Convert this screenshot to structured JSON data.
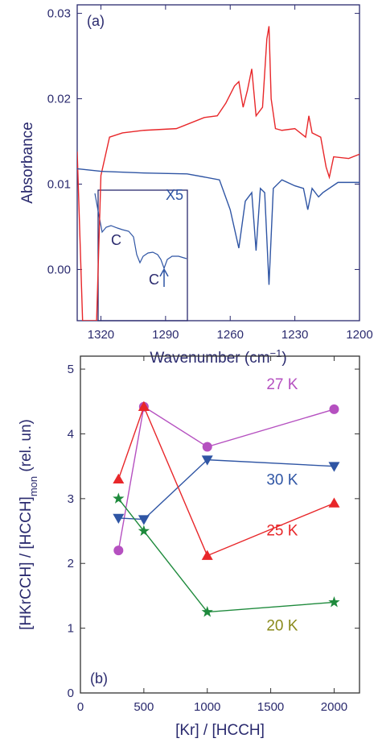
{
  "chart_data": [
    {
      "type": "line",
      "panel_label": "(a)",
      "y_label": "Absorbance",
      "x_label": [
        "Wavenumber (cm",
        "−1",
        ")"
      ],
      "xlim": [
        1331,
        1200
      ],
      "xticks": [
        1320,
        1290,
        1260,
        1230,
        1200
      ],
      "ylim": [
        -0.006,
        0.031
      ],
      "yticks": [
        {
          "value": 0,
          "label": "0.00"
        },
        0.01,
        0.02,
        0.03
      ],
      "annotations": [
        "C",
        "C",
        "X5"
      ],
      "series": [
        {
          "color": "#e8272a",
          "x": [
            1331,
            1328.5,
            1322,
            1320,
            1316,
            1310,
            1300,
            1285,
            1272,
            1266,
            1262,
            1258,
            1256,
            1254,
            1252,
            1250,
            1248,
            1245,
            1243,
            1242,
            1241,
            1239,
            1236,
            1230,
            1225,
            1223.5,
            1222,
            1218,
            1215.5,
            1214,
            1212,
            1205,
            1200
          ],
          "values": [
            0.0138,
            -0.006,
            -0.006,
            0.011,
            0.0155,
            0.016,
            0.0163,
            0.0165,
            0.0178,
            0.018,
            0.0195,
            0.0215,
            0.022,
            0.019,
            0.021,
            0.0235,
            0.018,
            0.019,
            0.027,
            0.0285,
            0.02,
            0.0165,
            0.0163,
            0.0165,
            0.0155,
            0.018,
            0.016,
            0.0155,
            0.012,
            0.0108,
            0.0132,
            0.013,
            0.0135
          ]
        },
        {
          "color": "#2f55a4",
          "x": [
            1331,
            1320,
            1300,
            1280,
            1265,
            1260,
            1256,
            1253,
            1250,
            1248,
            1246,
            1244,
            1242,
            1240,
            1236,
            1230,
            1226,
            1224,
            1222,
            1219,
            1217,
            1210,
            1200
          ],
          "values": [
            0.0118,
            0.0115,
            0.0113,
            0.0112,
            0.0105,
            0.007,
            0.0025,
            0.008,
            0.009,
            0.0022,
            0.0095,
            0.009,
            -0.0018,
            0.0095,
            0.0105,
            0.0098,
            0.0095,
            0.007,
            0.0095,
            0.0085,
            0.009,
            0.0102,
            0.0102
          ]
        }
      ]
    },
    {
      "type": "line",
      "panel_label": "(b)",
      "y_label": [
        "[HKrCCH] / [HCCH]",
        "mon",
        " (rel. un)"
      ],
      "x_label": "[Kr] / [HCCH]",
      "xlim": [
        0,
        2200
      ],
      "xticks": [
        0,
        500,
        1000,
        1500,
        2000
      ],
      "ylim": [
        0,
        5.2
      ],
      "yticks": [
        0,
        1,
        2,
        3,
        4,
        5
      ],
      "x": [
        300,
        500,
        1000,
        2000
      ],
      "series": [
        {
          "name": "27 K",
          "color": "#b550c0",
          "label_color": "#b550c0",
          "marker": "circle",
          "values": [
            2.2,
            4.42,
            3.8,
            4.38
          ]
        },
        {
          "name": "30 K",
          "color": "#2f55a4",
          "label_color": "#2f55a4",
          "marker": "triangle-down",
          "values": [
            2.7,
            2.68,
            3.6,
            3.5
          ]
        },
        {
          "name": "25 K",
          "color": "#e8272a",
          "label_color": "#e8272a",
          "marker": "triangle-up",
          "values": [
            3.3,
            4.42,
            2.12,
            2.93
          ]
        },
        {
          "name": "20 K",
          "color": "#1e8a3c",
          "label_color": "#8a8a1c",
          "marker": "star",
          "values": [
            3.0,
            2.5,
            1.25,
            1.4
          ]
        }
      ]
    }
  ]
}
